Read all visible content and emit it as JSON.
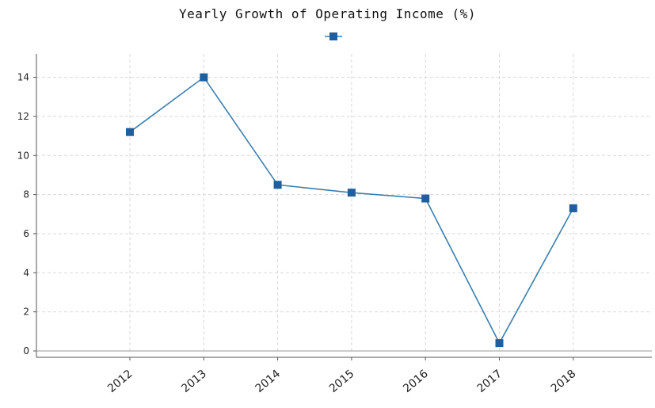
{
  "chart_data": {
    "type": "line",
    "title": "Yearly Growth of Operating Income (%)",
    "xlabel": "",
    "ylabel": "",
    "categories": [
      "2012",
      "2013",
      "2014",
      "2015",
      "2016",
      "2017",
      "2018"
    ],
    "series": [
      {
        "values": [
          11.2,
          14.0,
          8.5,
          8.1,
          7.8,
          0.4,
          7.3
        ]
      }
    ],
    "ylim": [
      0,
      15.2
    ],
    "yticks": [
      0,
      2,
      4,
      6,
      8,
      10,
      12,
      14
    ],
    "grid": true,
    "legend_position": "top-center",
    "colors": {
      "line": "#3a7fb0",
      "marker": "#1f5fa0",
      "grid": "#d9d9d9",
      "axis": "#555555"
    }
  }
}
